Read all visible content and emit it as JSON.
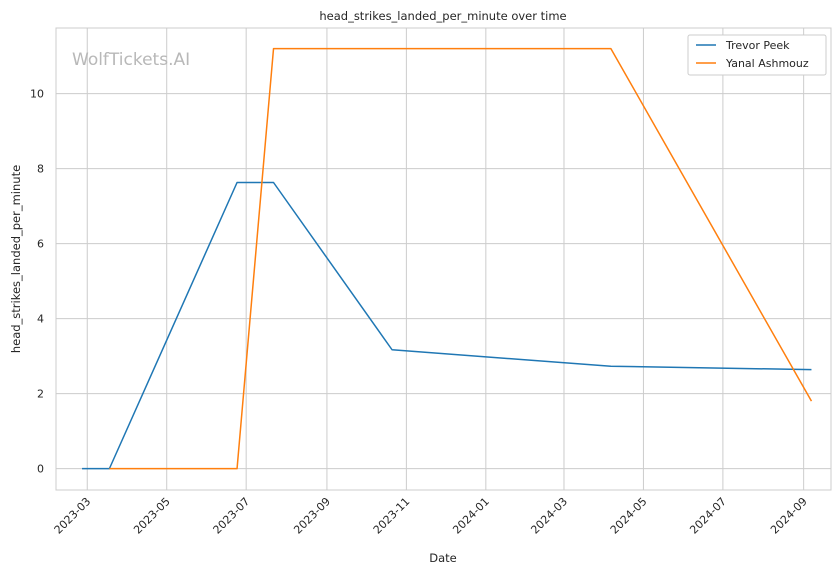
{
  "chart_data": {
    "type": "line",
    "title": "head_strikes_landed_per_minute over time",
    "xlabel": "Date",
    "ylabel": "head_strikes_landed_per_minute",
    "watermark": "WolfTickets.AI",
    "x_ticks": [
      "2023-03",
      "2023-05",
      "2023-07",
      "2023-09",
      "2023-11",
      "2024-01",
      "2024-03",
      "2024-05",
      "2024-07",
      "2024-09"
    ],
    "y_ticks": [
      "0",
      "2",
      "4",
      "6",
      "8",
      "10"
    ],
    "xlim": [
      "2023-02-05",
      "2024-09-22"
    ],
    "ylim": [
      -0.57,
      11.75
    ],
    "grid": true,
    "legend_position": "top-right",
    "series": [
      {
        "name": "Trevor Peek",
        "color": "#1f77b4",
        "x": [
          "2023-02-25",
          "2023-03-18",
          "2023-06-24",
          "2023-07-22",
          "2023-10-21",
          "2024-04-06",
          "2024-09-07"
        ],
        "y": [
          0.0,
          0.0,
          7.63,
          7.63,
          3.17,
          2.73,
          2.64
        ]
      },
      {
        "name": "Yanal Ashmouz",
        "color": "#ff7f0e",
        "x": [
          "2023-03-18",
          "2023-06-24",
          "2023-07-22",
          "2024-04-06",
          "2024-09-07"
        ],
        "y": [
          0.0,
          0.0,
          11.2,
          11.2,
          1.8
        ]
      }
    ]
  }
}
